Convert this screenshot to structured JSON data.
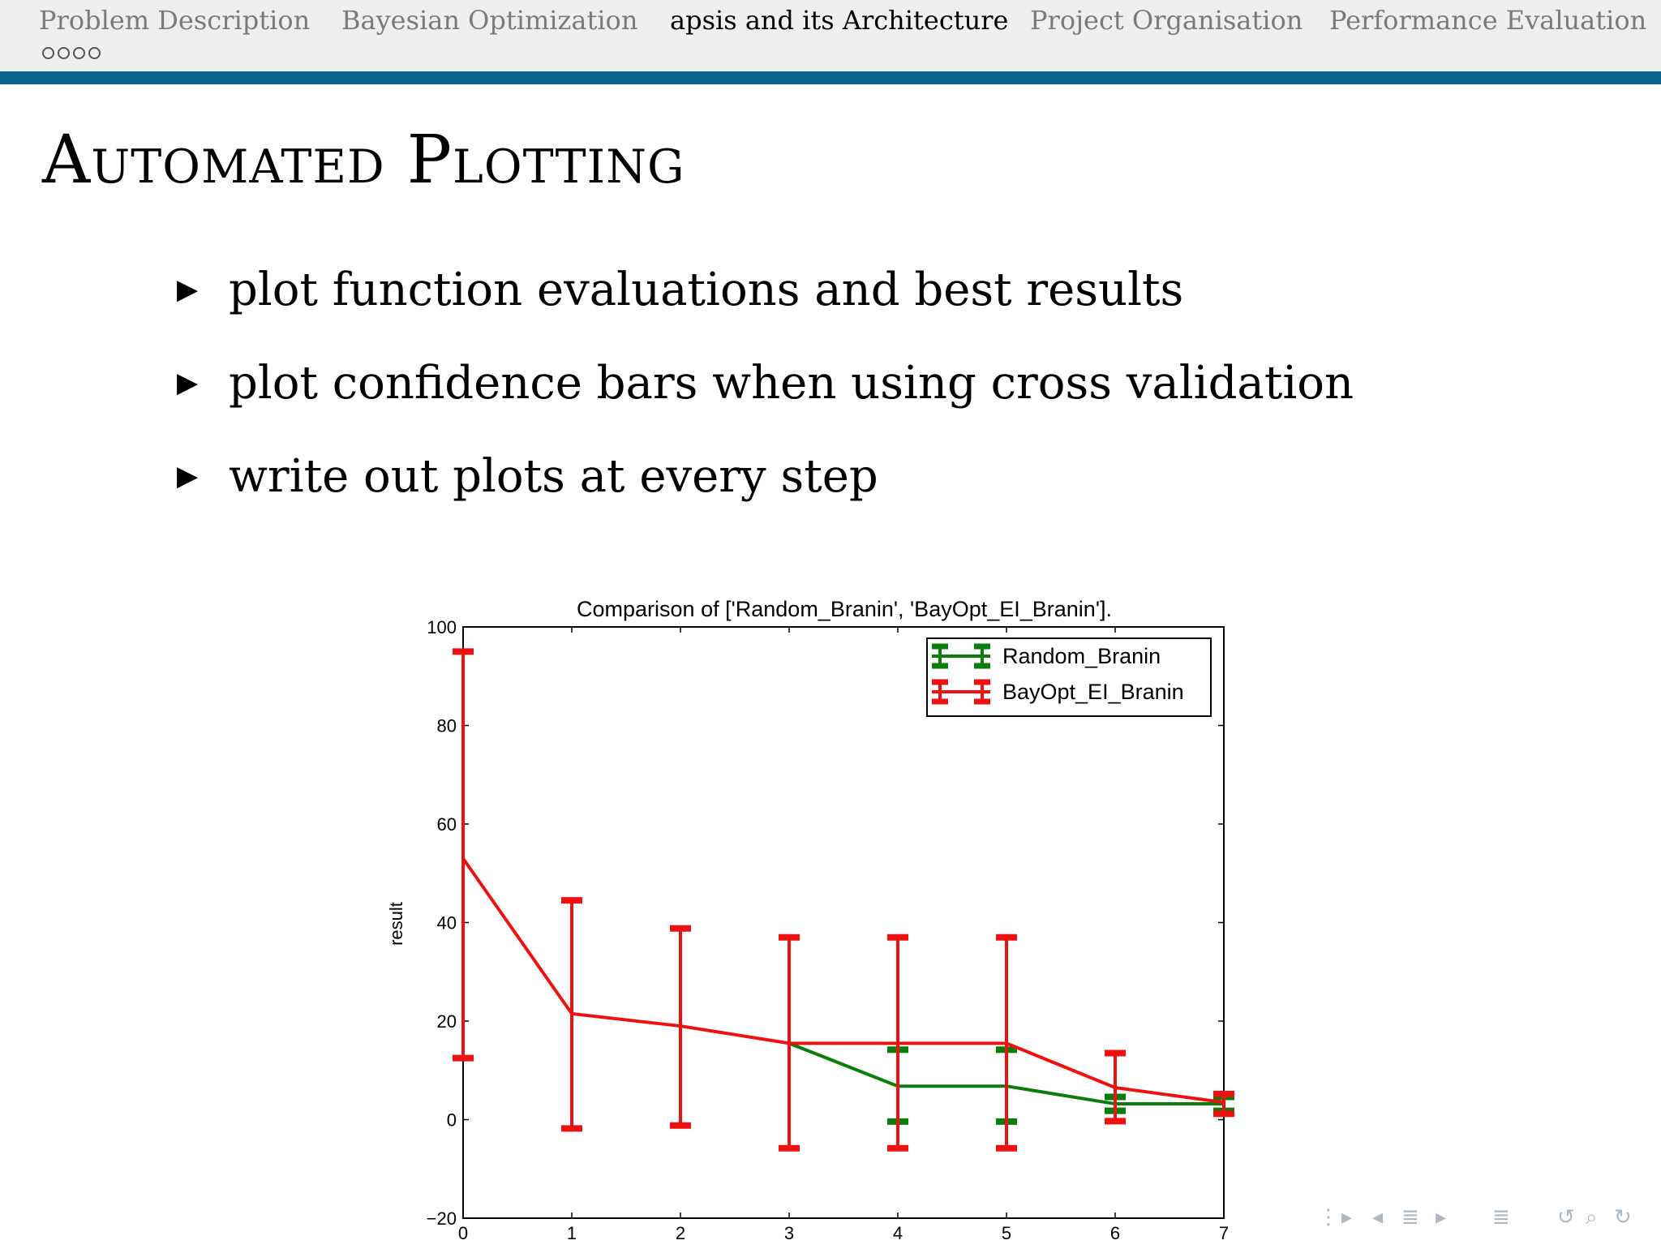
{
  "header": {
    "sections": [
      {
        "label": "Problem Description",
        "active": false
      },
      {
        "label": "Bayesian Optimization",
        "active": false
      },
      {
        "label": "apsis and its Architecture",
        "active": true
      },
      {
        "label": "Project Organisation",
        "active": false
      },
      {
        "label": "Performance Evaluation",
        "active": false
      }
    ],
    "progress_dots": 4,
    "accent_color": "#0d6591"
  },
  "slide": {
    "title": "Automated Plotting",
    "bullet_marker": "▶",
    "bullets": [
      "plot function evaluations and best results",
      "plot confidence bars when using cross validation",
      "write out plots at every step"
    ]
  },
  "chart_data": {
    "type": "line",
    "title": "Comparison of ['Random_Branin', 'BayOpt_EI_Branin'].",
    "xlabel": "",
    "ylabel": "result",
    "xlim": [
      0,
      7
    ],
    "ylim": [
      -20,
      100
    ],
    "x_ticks": [
      "0",
      "1",
      "2",
      "3",
      "4",
      "5",
      "6",
      "7"
    ],
    "y_ticks": [
      "−20",
      "0",
      "20",
      "40",
      "60",
      "80",
      "100"
    ],
    "grid": false,
    "legend_position": "top-right",
    "series": [
      {
        "name": "Random_Branin",
        "color": "#0a7d0a",
        "x": [
          3,
          4,
          5,
          6,
          7
        ],
        "y": [
          15.5,
          6.8,
          6.8,
          3.2,
          3.2
        ],
        "err_low": [
          15.5,
          -0.4,
          -0.4,
          1.8,
          1.8
        ],
        "err_high": [
          15.5,
          14.2,
          14.2,
          4.6,
          4.6
        ]
      },
      {
        "name": "BayOpt_EI_Branin",
        "color": "#ee1111",
        "x": [
          0,
          1,
          2,
          3,
          4,
          5,
          6,
          7
        ],
        "y": [
          53,
          21.5,
          19,
          15.5,
          15.5,
          15.5,
          6.5,
          3.5
        ],
        "err_low": [
          12.5,
          -1.8,
          -1.2,
          -5.8,
          -5.8,
          -5.8,
          -0.3,
          1.2
        ],
        "err_high": [
          95,
          44.5,
          38.8,
          37,
          37,
          37,
          13.5,
          5.2
        ]
      }
    ]
  },
  "beamer_nav": [
    "⋮",
    "▸",
    "◂",
    "≣",
    "▸",
    "≣",
    "↺",
    "⌕",
    "↻"
  ]
}
